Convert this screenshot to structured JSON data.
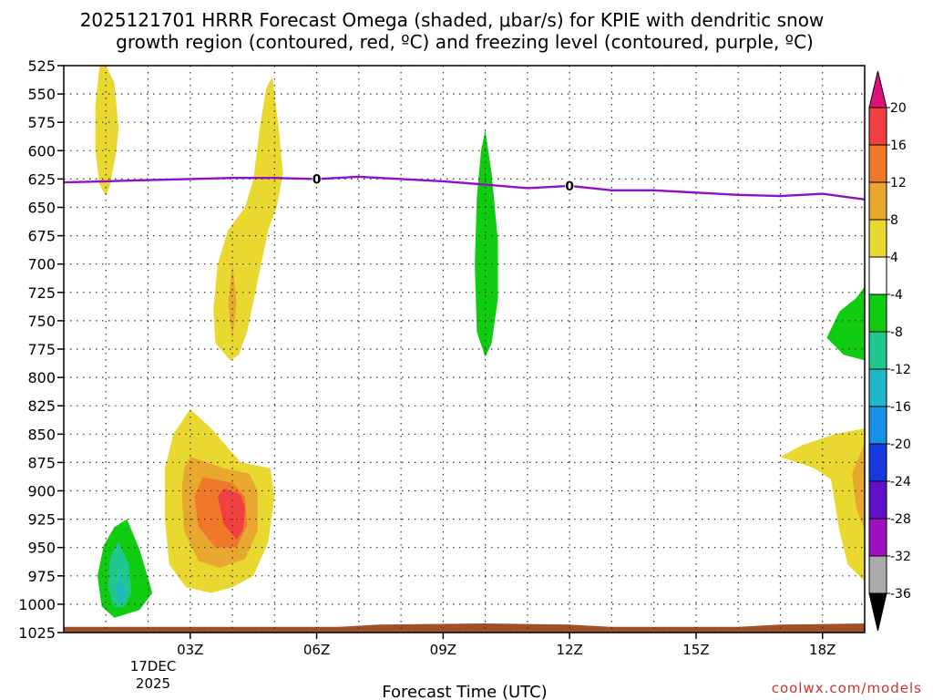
{
  "chart_data": {
    "type": "contour",
    "title_line1": "2025121701 HRRR Forecast Omega (shaded, μbar/s) for KPIE with dendritic snow",
    "title_line2": "growth region (contoured, red, ºC) and freezing level (contoured, purple, ºC)",
    "xlabel": "Forecast Time (UTC)",
    "ylabel": "",
    "x_ticks": [
      {
        "hour": 3,
        "label": "03Z"
      },
      {
        "hour": 6,
        "label": "06Z"
      },
      {
        "hour": 9,
        "label": "09Z"
      },
      {
        "hour": 12,
        "label": "12Z"
      },
      {
        "hour": 15,
        "label": "15Z"
      },
      {
        "hour": 18,
        "label": "18Z"
      }
    ],
    "x_date_label": "17DEC",
    "x_year_label": "2025",
    "xlim": [
      0,
      19
    ],
    "y_ticks": [
      525,
      550,
      575,
      600,
      625,
      650,
      675,
      700,
      725,
      750,
      775,
      800,
      825,
      850,
      875,
      900,
      925,
      950,
      975,
      1000,
      1025
    ],
    "ylim": [
      525,
      1025
    ],
    "y_axis_units": "hPa (pressure, inverted)",
    "colorbar": {
      "units": "μbar/s",
      "levels": [
        20,
        16,
        12,
        8,
        4,
        -4,
        -8,
        -12,
        -16,
        -20,
        -24,
        -28,
        -32,
        -36
      ],
      "colors": [
        "#e0107a",
        "#f04040",
        "#f07828",
        "#e8a830",
        "#e8d830",
        "#ffffff",
        "#10cc10",
        "#20c890",
        "#20b8c8",
        "#1890e8",
        "#1838e0",
        "#6010c8",
        "#a010c0",
        "#aaaaaa",
        "#000000"
      ]
    },
    "freezing_level": {
      "color": "#9010c8",
      "label": "0",
      "label_hours": [
        6,
        12
      ],
      "points": [
        {
          "hour": 0,
          "hPa": 628
        },
        {
          "hour": 1,
          "hPa": 627
        },
        {
          "hour": 2,
          "hPa": 626
        },
        {
          "hour": 3,
          "hPa": 625
        },
        {
          "hour": 4,
          "hPa": 624
        },
        {
          "hour": 5,
          "hPa": 624
        },
        {
          "hour": 6,
          "hPa": 625
        },
        {
          "hour": 7,
          "hPa": 623
        },
        {
          "hour": 8,
          "hPa": 625
        },
        {
          "hour": 9,
          "hPa": 627
        },
        {
          "hour": 10,
          "hPa": 630
        },
        {
          "hour": 11,
          "hPa": 633
        },
        {
          "hour": 12,
          "hPa": 631
        },
        {
          "hour": 13,
          "hPa": 635
        },
        {
          "hour": 14,
          "hPa": 635
        },
        {
          "hour": 15,
          "hPa": 637
        },
        {
          "hour": 16,
          "hPa": 639
        },
        {
          "hour": 17,
          "hPa": 640
        },
        {
          "hour": 18,
          "hPa": 638
        },
        {
          "hour": 19,
          "hPa": 643
        }
      ]
    },
    "shaded_regions": [
      {
        "name": "rising-yellow-plume-early",
        "color": "#e8d830",
        "points": [
          [
            1.0,
            525
          ],
          [
            1.2,
            540
          ],
          [
            1.3,
            580
          ],
          [
            1.25,
            600
          ],
          [
            1.1,
            630
          ],
          [
            1.0,
            640
          ],
          [
            0.85,
            630
          ],
          [
            0.75,
            600
          ],
          [
            0.75,
            560
          ],
          [
            0.85,
            525
          ]
        ]
      },
      {
        "name": "rising-yellow-plume-mid",
        "color": "#e8d830",
        "points": [
          [
            4.95,
            535
          ],
          [
            5.1,
            580
          ],
          [
            5.2,
            620
          ],
          [
            5.05,
            650
          ],
          [
            4.85,
            670
          ],
          [
            4.6,
            715
          ],
          [
            4.35,
            760
          ],
          [
            4.15,
            780
          ],
          [
            3.95,
            785
          ],
          [
            3.6,
            770
          ],
          [
            3.55,
            740
          ],
          [
            3.65,
            700
          ],
          [
            3.9,
            670
          ],
          [
            4.3,
            650
          ],
          [
            4.5,
            625
          ],
          [
            4.65,
            580
          ],
          [
            4.8,
            545
          ]
        ]
      },
      {
        "name": "rising-orange-core-mid",
        "color": "#e8a830",
        "points": [
          [
            4.0,
            700
          ],
          [
            4.1,
            735
          ],
          [
            4.0,
            765
          ],
          [
            3.9,
            735
          ]
        ]
      },
      {
        "name": "sinking-green-streak",
        "color": "#10cc10",
        "points": [
          [
            10.0,
            582
          ],
          [
            10.15,
            620
          ],
          [
            10.3,
            680
          ],
          [
            10.3,
            730
          ],
          [
            10.15,
            770
          ],
          [
            10.0,
            782
          ],
          [
            9.8,
            760
          ],
          [
            9.75,
            700
          ],
          [
            9.8,
            640
          ],
          [
            9.9,
            600
          ]
        ]
      },
      {
        "name": "sinking-green-lobe-late",
        "color": "#10cc10",
        "points": [
          [
            19.0,
            720
          ],
          [
            19.0,
            785
          ],
          [
            18.5,
            780
          ],
          [
            18.1,
            765
          ],
          [
            18.4,
            742
          ],
          [
            18.8,
            730
          ]
        ]
      },
      {
        "name": "rising-yellow-lowlevel",
        "color": "#e8d830",
        "points": [
          [
            3.0,
            828
          ],
          [
            3.5,
            845
          ],
          [
            4.2,
            875
          ],
          [
            4.9,
            880
          ],
          [
            5.0,
            905
          ],
          [
            4.85,
            945
          ],
          [
            4.5,
            975
          ],
          [
            4.0,
            985
          ],
          [
            3.5,
            990
          ],
          [
            2.9,
            985
          ],
          [
            2.5,
            965
          ],
          [
            2.4,
            925
          ],
          [
            2.4,
            880
          ],
          [
            2.6,
            850
          ]
        ]
      },
      {
        "name": "rising-orange-lowlevel",
        "color": "#e8a830",
        "points": [
          [
            3.0,
            870
          ],
          [
            3.8,
            880
          ],
          [
            4.4,
            885
          ],
          [
            4.6,
            900
          ],
          [
            4.6,
            935
          ],
          [
            4.3,
            960
          ],
          [
            3.7,
            968
          ],
          [
            3.2,
            962
          ],
          [
            2.85,
            935
          ],
          [
            2.8,
            900
          ],
          [
            2.85,
            880
          ]
        ]
      },
      {
        "name": "rising-orange-deep-lowlevel",
        "color": "#f07828",
        "points": [
          [
            3.3,
            888
          ],
          [
            4.0,
            893
          ],
          [
            4.3,
            905
          ],
          [
            4.35,
            930
          ],
          [
            4.1,
            950
          ],
          [
            3.6,
            950
          ],
          [
            3.2,
            932
          ],
          [
            3.1,
            905
          ]
        ]
      },
      {
        "name": "rising-red-core-lowlevel",
        "color": "#f04040",
        "points": [
          [
            3.8,
            898
          ],
          [
            4.2,
            903
          ],
          [
            4.3,
            915
          ],
          [
            4.25,
            935
          ],
          [
            4.1,
            943
          ],
          [
            3.8,
            930
          ],
          [
            3.65,
            905
          ]
        ]
      },
      {
        "name": "sinking-green-lowlevel",
        "color": "#10cc10",
        "points": [
          [
            1.5,
            925
          ],
          [
            1.8,
            952
          ],
          [
            2.1,
            990
          ],
          [
            1.8,
            1005
          ],
          [
            1.2,
            1012
          ],
          [
            0.9,
            1002
          ],
          [
            0.8,
            975
          ],
          [
            0.95,
            948
          ],
          [
            1.2,
            932
          ]
        ]
      },
      {
        "name": "sinking-teal-core-lowlevel",
        "color": "#20c890",
        "points": [
          [
            1.3,
            945
          ],
          [
            1.55,
            965
          ],
          [
            1.6,
            990
          ],
          [
            1.45,
            1002
          ],
          [
            1.2,
            1003
          ],
          [
            1.05,
            985
          ],
          [
            1.1,
            958
          ]
        ]
      },
      {
        "name": "sinking-cyan-core-lowlevel",
        "color": "#20b8c8",
        "points": [
          [
            1.35,
            975
          ],
          [
            1.45,
            988
          ],
          [
            1.4,
            998
          ],
          [
            1.3,
            998
          ],
          [
            1.25,
            985
          ]
        ]
      },
      {
        "name": "rising-yellow-lowlevel-late",
        "color": "#e8d830",
        "points": [
          [
            19.0,
            845
          ],
          [
            19.0,
            980
          ],
          [
            18.6,
            965
          ],
          [
            18.4,
            935
          ],
          [
            18.2,
            890
          ],
          [
            17.8,
            880
          ],
          [
            17.0,
            870
          ],
          [
            17.5,
            860
          ],
          [
            18.3,
            850
          ]
        ]
      },
      {
        "name": "rising-orange-lowlevel-late",
        "color": "#e8a830",
        "points": [
          [
            19.0,
            858
          ],
          [
            19.0,
            935
          ],
          [
            18.8,
            915
          ],
          [
            18.7,
            885
          ]
        ]
      }
    ],
    "ground_strip": {
      "color": "#a05028",
      "top_points": [
        {
          "hour": 0,
          "hPa": 1020
        },
        {
          "hour": 5,
          "hPa": 1020
        },
        {
          "hour": 6.5,
          "hPa": 1020
        },
        {
          "hour": 7.5,
          "hPa": 1018
        },
        {
          "hour": 10,
          "hPa": 1017
        },
        {
          "hour": 12,
          "hPa": 1018
        },
        {
          "hour": 13,
          "hPa": 1020
        },
        {
          "hour": 15,
          "hPa": 1020
        },
        {
          "hour": 16,
          "hPa": 1020
        },
        {
          "hour": 17,
          "hPa": 1018
        },
        {
          "hour": 19,
          "hPa": 1017
        }
      ]
    }
  },
  "credit": "coolwx.com/models"
}
